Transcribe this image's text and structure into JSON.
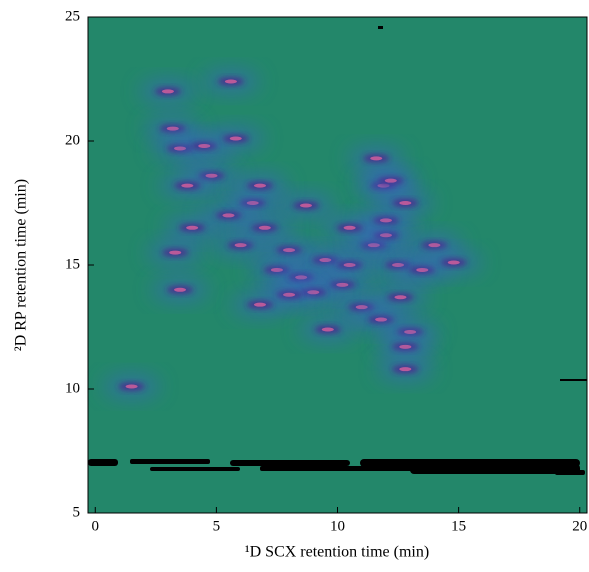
{
  "chart_data": {
    "type": "spot-map",
    "xlabel": "¹D SCX retention time (min)",
    "ylabel": "²D RP retention time (min)",
    "xlim": [
      -0.3,
      20.3
    ],
    "ylim": [
      5,
      25
    ],
    "xticks": [
      0,
      5,
      10,
      15,
      20
    ],
    "yticks": [
      5,
      10,
      15,
      20,
      25
    ],
    "background": "#23876a",
    "colors": [
      "#3a63c4",
      "#4b2a8e",
      "#d8609c"
    ],
    "x": [
      3,
      3.2,
      3.5,
      4.5,
      5.8,
      4.8,
      3.8,
      6.5,
      5.5,
      4,
      3.3,
      3.5,
      6,
      7,
      8.7,
      8,
      7.5,
      8.5,
      9.5,
      10.5,
      10.2,
      9,
      8,
      6.8,
      9.6,
      11,
      11.8,
      12.6,
      11.5,
      12,
      12,
      11.9,
      12.2,
      11.6,
      12.8,
      12.5,
      13.5,
      14,
      14.8,
      13,
      12.8,
      12.8,
      5.6,
      6.8,
      10.5,
      1.5
    ],
    "y": [
      22,
      20.5,
      19.7,
      19.8,
      20.1,
      18.6,
      18.2,
      17.5,
      17,
      16.5,
      15.5,
      14,
      15.8,
      16.5,
      17.4,
      15.6,
      14.8,
      14.5,
      15.2,
      15,
      14.2,
      13.9,
      13.8,
      13.4,
      12.4,
      13.3,
      12.8,
      13.7,
      15.8,
      16.2,
      16.8,
      18.2,
      18.4,
      19.3,
      17.5,
      15,
      14.8,
      15.8,
      15.1,
      12.3,
      11.7,
      10.8,
      22.4,
      18.2,
      16.5,
      10.1
    ]
  }
}
